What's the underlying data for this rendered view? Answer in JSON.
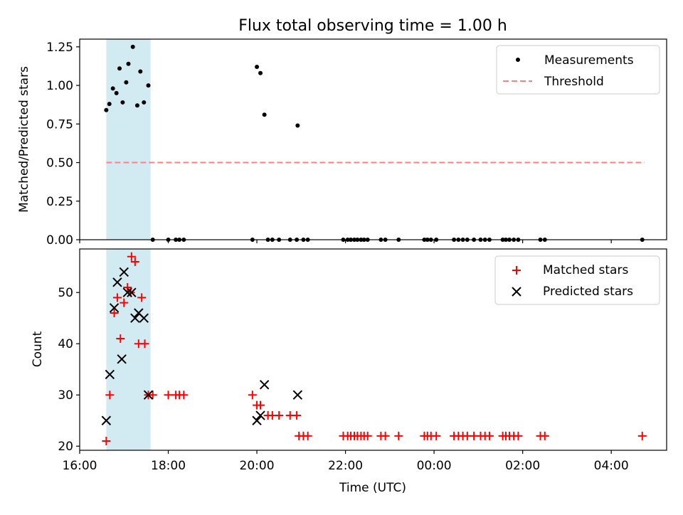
{
  "title": "Flux total observing time = 1.00 h",
  "colors": {
    "shade": "#add8e6",
    "threshold": "#ff8080",
    "matched": "#ff0000",
    "predicted": "#000000",
    "measurement": "#000000"
  },
  "chart_data": [
    {
      "type": "scatter",
      "name": "ratio-panel",
      "ylabel": "Matched/Predicted stars",
      "ylim": [
        0,
        1.3
      ],
      "yticks": [
        0.0,
        0.25,
        0.5,
        0.75,
        1.0,
        1.25
      ],
      "ytick_labels": [
        "0.00",
        "0.25",
        "0.50",
        "0.75",
        "1.00",
        "1.25"
      ],
      "xlim_hours": [
        16.0,
        29.25
      ],
      "shaded_interval_hours": [
        16.6,
        17.6
      ],
      "legend": {
        "position": "top-right",
        "entries": [
          "Measurements",
          "Threshold"
        ]
      },
      "threshold": {
        "name": "Threshold",
        "value": 0.5,
        "x_range_hours": [
          16.6,
          28.75
        ]
      },
      "series": [
        {
          "name": "Measurements",
          "points": [
            [
              16.6,
              0.84
            ],
            [
              16.67,
              0.88
            ],
            [
              16.75,
              0.98
            ],
            [
              16.83,
              0.95
            ],
            [
              16.9,
              1.11
            ],
            [
              16.97,
              0.89
            ],
            [
              17.05,
              1.02
            ],
            [
              17.1,
              1.14
            ],
            [
              17.2,
              1.25
            ],
            [
              17.3,
              0.87
            ],
            [
              17.37,
              1.09
            ],
            [
              17.45,
              0.89
            ],
            [
              17.55,
              1.0
            ],
            [
              20.0,
              1.12
            ],
            [
              20.08,
              1.08
            ],
            [
              20.17,
              0.81
            ],
            [
              20.92,
              0.74
            ],
            [
              17.65,
              0
            ],
            [
              18.0,
              0
            ],
            [
              18.17,
              0
            ],
            [
              18.25,
              0
            ],
            [
              18.35,
              0
            ],
            [
              19.9,
              0
            ],
            [
              20.25,
              0
            ],
            [
              20.35,
              0
            ],
            [
              20.5,
              0
            ],
            [
              20.75,
              0
            ],
            [
              20.9,
              0
            ],
            [
              21.05,
              0
            ],
            [
              21.15,
              0
            ],
            [
              21.95,
              0
            ],
            [
              22.05,
              0
            ],
            [
              22.12,
              0
            ],
            [
              22.2,
              0
            ],
            [
              22.27,
              0
            ],
            [
              22.35,
              0
            ],
            [
              22.42,
              0
            ],
            [
              22.5,
              0
            ],
            [
              22.8,
              0
            ],
            [
              22.9,
              0
            ],
            [
              23.2,
              0
            ],
            [
              23.78,
              0
            ],
            [
              23.85,
              0
            ],
            [
              23.93,
              0
            ],
            [
              24.05,
              0
            ],
            [
              24.45,
              0
            ],
            [
              24.55,
              0
            ],
            [
              24.65,
              0
            ],
            [
              24.75,
              0
            ],
            [
              24.9,
              0
            ],
            [
              25.05,
              0
            ],
            [
              25.15,
              0
            ],
            [
              25.25,
              0
            ],
            [
              25.55,
              0
            ],
            [
              25.62,
              0
            ],
            [
              25.7,
              0
            ],
            [
              25.8,
              0
            ],
            [
              25.9,
              0
            ],
            [
              26.4,
              0
            ],
            [
              26.5,
              0
            ],
            [
              28.7,
              0
            ]
          ]
        }
      ]
    },
    {
      "type": "scatter",
      "name": "count-panel",
      "xlabel": "Time (UTC)",
      "ylabel": "Count",
      "ylim": [
        19.2,
        58.5
      ],
      "yticks": [
        20,
        30,
        40,
        50
      ],
      "ytick_labels": [
        "20",
        "30",
        "40",
        "50"
      ],
      "xlim_hours": [
        16.0,
        29.25
      ],
      "xticks_hours": [
        16,
        18,
        20,
        22,
        24,
        26,
        28
      ],
      "xtick_labels": [
        "16:00",
        "18:00",
        "20:00",
        "22:00",
        "00:00",
        "02:00",
        "04:00"
      ],
      "shaded_interval_hours": [
        16.6,
        17.6
      ],
      "legend": {
        "position": "top-right",
        "entries": [
          "Matched stars",
          "Predicted stars"
        ]
      },
      "series": [
        {
          "name": "Matched stars",
          "marker": "plus",
          "points": [
            [
              16.6,
              21
            ],
            [
              16.68,
              30
            ],
            [
              16.78,
              46
            ],
            [
              16.85,
              49
            ],
            [
              16.92,
              41
            ],
            [
              17.0,
              48
            ],
            [
              17.08,
              51
            ],
            [
              17.15,
              50
            ],
            [
              17.17,
              57
            ],
            [
              17.25,
              56
            ],
            [
              17.33,
              40
            ],
            [
              17.4,
              49
            ],
            [
              17.47,
              40
            ],
            [
              17.55,
              30
            ],
            [
              17.65,
              30
            ],
            [
              18.0,
              30
            ],
            [
              18.17,
              30
            ],
            [
              18.25,
              30
            ],
            [
              18.35,
              30
            ],
            [
              19.9,
              30
            ],
            [
              20.0,
              28
            ],
            [
              20.08,
              28
            ],
            [
              20.25,
              26
            ],
            [
              20.35,
              26
            ],
            [
              20.5,
              26
            ],
            [
              20.75,
              26
            ],
            [
              20.9,
              26
            ],
            [
              20.95,
              22
            ],
            [
              21.05,
              22
            ],
            [
              21.15,
              22
            ],
            [
              21.95,
              22
            ],
            [
              22.05,
              22
            ],
            [
              22.12,
              22
            ],
            [
              22.2,
              22
            ],
            [
              22.27,
              22
            ],
            [
              22.35,
              22
            ],
            [
              22.42,
              22
            ],
            [
              22.5,
              22
            ],
            [
              22.8,
              22
            ],
            [
              22.9,
              22
            ],
            [
              23.2,
              22
            ],
            [
              23.78,
              22
            ],
            [
              23.85,
              22
            ],
            [
              23.93,
              22
            ],
            [
              24.05,
              22
            ],
            [
              24.45,
              22
            ],
            [
              24.55,
              22
            ],
            [
              24.65,
              22
            ],
            [
              24.75,
              22
            ],
            [
              24.9,
              22
            ],
            [
              25.05,
              22
            ],
            [
              25.15,
              22
            ],
            [
              25.25,
              22
            ],
            [
              25.55,
              22
            ],
            [
              25.62,
              22
            ],
            [
              25.7,
              22
            ],
            [
              25.8,
              22
            ],
            [
              25.9,
              22
            ],
            [
              26.4,
              22
            ],
            [
              26.5,
              22
            ],
            [
              28.7,
              22
            ]
          ]
        },
        {
          "name": "Predicted stars",
          "marker": "x",
          "points": [
            [
              16.6,
              25
            ],
            [
              16.68,
              34
            ],
            [
              16.78,
              47
            ],
            [
              16.85,
              52
            ],
            [
              16.95,
              37
            ],
            [
              17.0,
              54
            ],
            [
              17.08,
              50
            ],
            [
              17.17,
              50
            ],
            [
              17.25,
              45
            ],
            [
              17.33,
              46
            ],
            [
              17.45,
              45
            ],
            [
              17.55,
              30
            ],
            [
              20.0,
              25
            ],
            [
              20.08,
              26
            ],
            [
              20.17,
              32
            ],
            [
              20.92,
              30
            ]
          ]
        }
      ]
    }
  ]
}
